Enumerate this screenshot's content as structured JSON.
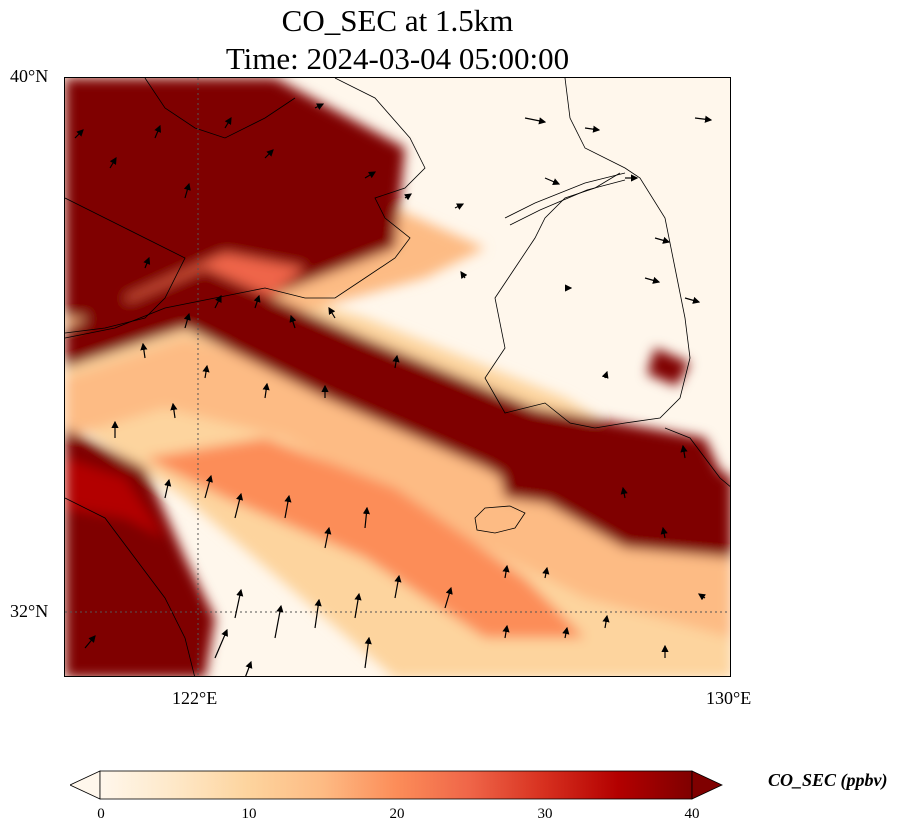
{
  "title": {
    "line1": "CO_SEC at 1.5km",
    "line2": "Time: 2024-03-04 05:00:00"
  },
  "map": {
    "lon_range": [
      120,
      130
    ],
    "lat_range": [
      31,
      40
    ],
    "ytick_labels": [
      "40°N",
      "32°N"
    ],
    "xtick_labels": [
      "122°E",
      "130°E"
    ],
    "gridlines": "dotted at 122°E and 32°N",
    "colormap": "OrRd",
    "field": "CO_SEC"
  },
  "colorbar": {
    "label": "CO_SEC (ppbv)",
    "ticks": [
      "0",
      "10",
      "20",
      "30",
      "40"
    ],
    "min": 0,
    "max": 40,
    "extend": "both",
    "colors": [
      "#fff7ec",
      "#fee8c8",
      "#fdd49e",
      "#fdbb84",
      "#fc8d59",
      "#ef6548",
      "#d7301f",
      "#b30000",
      "#7f0000"
    ]
  }
}
